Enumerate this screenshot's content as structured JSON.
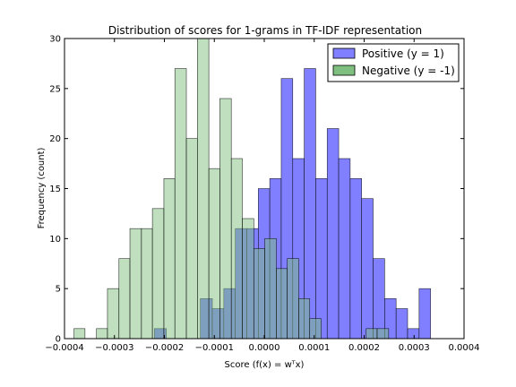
{
  "chart_data": {
    "type": "histogram",
    "title": "Distribution of scores for 1-grams in TF-IDF representation",
    "xlabel": "Score (f(x) = wᵀx)",
    "ylabel": "Frequency (count)",
    "xlim": [
      -0.0004,
      0.0004
    ],
    "ylim": [
      0,
      30
    ],
    "xticks": [
      -0.0004,
      -0.0003,
      -0.0002,
      -0.0001,
      0.0,
      0.0001,
      0.0002,
      0.0003,
      0.0004
    ],
    "xtick_labels": [
      "−0.0004",
      "−0.0003",
      "−0.0002",
      "−0.0001",
      "0.0000",
      "0.0001",
      "0.0002",
      "0.0003",
      "0.0004"
    ],
    "yticks": [
      0,
      5,
      10,
      15,
      20,
      25,
      30
    ],
    "grid": false,
    "legend_position": "top-right",
    "series": [
      {
        "name": "Positive (y = 1)",
        "color": "#7f7fff",
        "bins": [
          {
            "x0": -0.00022,
            "x1": -0.000196,
            "count": 1
          },
          {
            "x0": -0.000128,
            "x1": -0.000104,
            "count": 4
          },
          {
            "x0": -0.000104,
            "x1": -8.1e-05,
            "count": 3
          },
          {
            "x0": -8.1e-05,
            "x1": -5.8e-05,
            "count": 5
          },
          {
            "x0": -5.8e-05,
            "x1": -3.5e-05,
            "count": 11
          },
          {
            "x0": -3.5e-05,
            "x1": -1.2e-05,
            "count": 11
          },
          {
            "x0": -1.2e-05,
            "x1": 1.1e-05,
            "count": 15
          },
          {
            "x0": 1.1e-05,
            "x1": 3.4e-05,
            "count": 16
          },
          {
            "x0": 3.4e-05,
            "x1": 5.7e-05,
            "count": 26
          },
          {
            "x0": 5.7e-05,
            "x1": 8e-05,
            "count": 18
          },
          {
            "x0": 8e-05,
            "x1": 0.000103,
            "count": 27
          },
          {
            "x0": 0.000103,
            "x1": 0.000126,
            "count": 16
          },
          {
            "x0": 0.000126,
            "x1": 0.000149,
            "count": 21
          },
          {
            "x0": 0.000149,
            "x1": 0.000172,
            "count": 18
          },
          {
            "x0": 0.000172,
            "x1": 0.000195,
            "count": 16
          },
          {
            "x0": 0.000195,
            "x1": 0.000218,
            "count": 14
          },
          {
            "x0": 0.000218,
            "x1": 0.000241,
            "count": 8
          },
          {
            "x0": 0.000241,
            "x1": 0.000264,
            "count": 4
          },
          {
            "x0": 0.000264,
            "x1": 0.000287,
            "count": 3
          },
          {
            "x0": 0.000287,
            "x1": 0.00031,
            "count": 1
          },
          {
            "x0": 0.00031,
            "x1": 0.000333,
            "count": 5
          }
        ]
      },
      {
        "name": "Negative (y = -1)",
        "color": "#7fbf7f",
        "bins": [
          {
            "x0": -0.000381,
            "x1": -0.000359,
            "count": 1
          },
          {
            "x0": -0.000336,
            "x1": -0.000314,
            "count": 1
          },
          {
            "x0": -0.000314,
            "x1": -0.000291,
            "count": 5
          },
          {
            "x0": -0.000291,
            "x1": -0.000269,
            "count": 8
          },
          {
            "x0": -0.000269,
            "x1": -0.000246,
            "count": 11
          },
          {
            "x0": -0.000246,
            "x1": -0.000224,
            "count": 11
          },
          {
            "x0": -0.000224,
            "x1": -0.000201,
            "count": 13
          },
          {
            "x0": -0.000201,
            "x1": -0.000179,
            "count": 16
          },
          {
            "x0": -0.000179,
            "x1": -0.000156,
            "count": 27
          },
          {
            "x0": -0.000156,
            "x1": -0.000134,
            "count": 20
          },
          {
            "x0": -0.000134,
            "x1": -0.000111,
            "count": 30
          },
          {
            "x0": -0.000111,
            "x1": -8.9e-05,
            "count": 17
          },
          {
            "x0": -8.9e-05,
            "x1": -6.6e-05,
            "count": 24
          },
          {
            "x0": -6.6e-05,
            "x1": -4.4e-05,
            "count": 18
          },
          {
            "x0": -4.4e-05,
            "x1": -2.1e-05,
            "count": 12
          },
          {
            "x0": -2.1e-05,
            "x1": 1e-06,
            "count": 9
          },
          {
            "x0": 1e-06,
            "x1": 2.4e-05,
            "count": 10
          },
          {
            "x0": 2.4e-05,
            "x1": 4.6e-05,
            "count": 7
          },
          {
            "x0": 4.6e-05,
            "x1": 6.9e-05,
            "count": 8
          },
          {
            "x0": 6.9e-05,
            "x1": 9.1e-05,
            "count": 4
          },
          {
            "x0": 9.1e-05,
            "x1": 0.000114,
            "count": 2
          },
          {
            "x0": 0.000204,
            "x1": 0.000226,
            "count": 1
          },
          {
            "x0": 0.000226,
            "x1": 0.000249,
            "count": 1
          }
        ]
      }
    ]
  }
}
